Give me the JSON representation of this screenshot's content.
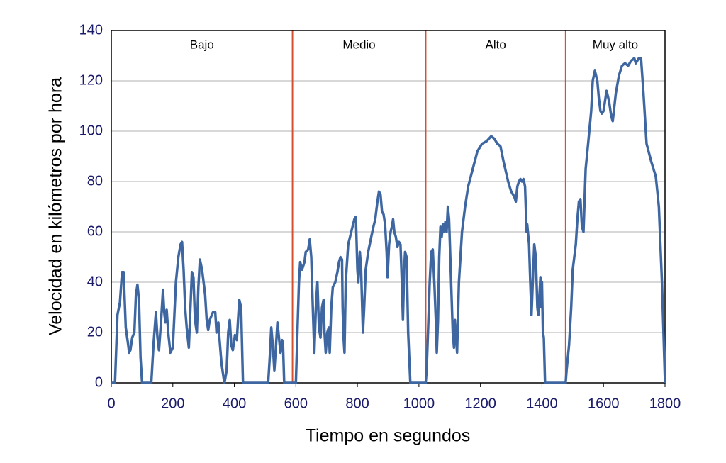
{
  "chart_data": {
    "type": "line",
    "xlabel": "Tiempo en segundos",
    "ylabel": "Velocidad en kilómetros por hora",
    "xlim": [
      0,
      1800
    ],
    "ylim": [
      0,
      140
    ],
    "xticks": [
      0,
      200,
      400,
      600,
      800,
      1000,
      1200,
      1400,
      1600,
      1800
    ],
    "yticks": [
      0,
      20,
      40,
      60,
      80,
      100,
      120,
      140
    ],
    "grid": true,
    "color": "#3e67a1",
    "phase_color": "#d4502e",
    "phases": [
      {
        "name": "Bajo",
        "start": 0,
        "end": 589
      },
      {
        "name": "Medio",
        "start": 589,
        "end": 1022
      },
      {
        "name": "Alto",
        "start": 1022,
        "end": 1477
      },
      {
        "name": "Muy alto",
        "start": 1477,
        "end": 1800
      }
    ],
    "x": [
      0,
      12,
      20,
      28,
      35,
      40,
      47,
      55,
      58,
      62,
      68,
      75,
      80,
      85,
      90,
      95,
      100,
      130,
      137,
      145,
      150,
      155,
      162,
      168,
      172,
      176,
      180,
      185,
      192,
      200,
      210,
      218,
      225,
      230,
      235,
      240,
      245,
      252,
      258,
      262,
      267,
      272,
      278,
      283,
      288,
      295,
      300,
      305,
      310,
      315,
      320,
      330,
      338,
      342,
      348,
      352,
      358,
      365,
      368,
      375,
      380,
      385,
      390,
      395,
      402,
      408,
      412,
      416,
      422,
      428,
      510,
      515,
      520,
      525,
      530,
      535,
      540,
      545,
      550,
      555,
      558,
      562,
      589,
      600,
      605,
      610,
      614,
      620,
      628,
      632,
      640,
      645,
      650,
      655,
      660,
      665,
      670,
      675,
      680,
      685,
      690,
      693,
      697,
      702,
      707,
      710,
      715,
      720,
      728,
      735,
      740,
      745,
      750,
      752,
      755,
      758,
      762,
      770,
      780,
      790,
      795,
      800,
      803,
      808,
      812,
      818,
      822,
      827,
      835,
      845,
      852,
      858,
      865,
      870,
      875,
      880,
      885,
      890,
      895,
      898,
      903,
      908,
      912,
      916,
      920,
      925,
      930,
      935,
      940,
      944,
      948,
      952,
      955,
      960,
      965,
      972,
      1022,
      1025,
      1030,
      1035,
      1040,
      1045,
      1050,
      1055,
      1058,
      1062,
      1066,
      1070,
      1074,
      1078,
      1082,
      1086,
      1090,
      1094,
      1098,
      1102,
      1106,
      1110,
      1114,
      1117,
      1120,
      1124,
      1130,
      1140,
      1150,
      1160,
      1175,
      1190,
      1205,
      1220,
      1235,
      1245,
      1255,
      1265,
      1275,
      1290,
      1300,
      1310,
      1315,
      1320,
      1325,
      1330,
      1335,
      1340,
      1345,
      1350,
      1352,
      1358,
      1362,
      1366,
      1370,
      1375,
      1380,
      1385,
      1388,
      1392,
      1395,
      1398,
      1400,
      1403,
      1406,
      1410,
      1477,
      1480,
      1488,
      1495,
      1500,
      1510,
      1515,
      1520,
      1525,
      1530,
      1535,
      1542,
      1550,
      1560,
      1565,
      1572,
      1580,
      1585,
      1590,
      1595,
      1600,
      1605,
      1610,
      1618,
      1625,
      1630,
      1640,
      1650,
      1660,
      1670,
      1680,
      1690,
      1700,
      1705,
      1710,
      1715,
      1722,
      1730,
      1740,
      1755,
      1770,
      1780,
      1790,
      1800
    ],
    "values": [
      0,
      0,
      27,
      32,
      44,
      44,
      22,
      15,
      12,
      13,
      18,
      20,
      35,
      39,
      33,
      10,
      0,
      0,
      15,
      28,
      18,
      13,
      25,
      37,
      28,
      24,
      29,
      20,
      12,
      14,
      40,
      50,
      55,
      56,
      45,
      30,
      22,
      14,
      32,
      44,
      42,
      25,
      20,
      38,
      49,
      45,
      40,
      35,
      25,
      21,
      25,
      28,
      28,
      20,
      24,
      17,
      8,
      2,
      0,
      5,
      20,
      25,
      15,
      13,
      19,
      17,
      25,
      33,
      30,
      0,
      0,
      10,
      22,
      15,
      5,
      14,
      24,
      18,
      12,
      17,
      16,
      0,
      0,
      0,
      20,
      40,
      48,
      45,
      48,
      52,
      53,
      57,
      50,
      30,
      12,
      30,
      40,
      22,
      18,
      30,
      33,
      20,
      12,
      20,
      22,
      12,
      30,
      38,
      40,
      44,
      48,
      50,
      49,
      30,
      18,
      12,
      40,
      55,
      60,
      65,
      66,
      45,
      40,
      52,
      45,
      20,
      30,
      45,
      52,
      58,
      62,
      65,
      72,
      76,
      75,
      68,
      67,
      63,
      52,
      42,
      55,
      60,
      62,
      65,
      60,
      58,
      54,
      56,
      55,
      42,
      25,
      45,
      52,
      50,
      20,
      0,
      0,
      5,
      22,
      40,
      52,
      53,
      40,
      25,
      12,
      25,
      50,
      62,
      58,
      63,
      60,
      64,
      60,
      70,
      65,
      50,
      35,
      20,
      14,
      25,
      20,
      12,
      40,
      60,
      70,
      78,
      85,
      92,
      95,
      96,
      98,
      97,
      95,
      94,
      88,
      80,
      76,
      74,
      72,
      78,
      80,
      81,
      80,
      81,
      78,
      60,
      63,
      55,
      40,
      27,
      40,
      55,
      50,
      30,
      27,
      35,
      42,
      30,
      40,
      20,
      18,
      0,
      0,
      5,
      15,
      30,
      45,
      55,
      65,
      72,
      73,
      62,
      60,
      85,
      95,
      108,
      120,
      124,
      120,
      113,
      108,
      107,
      108,
      112,
      116,
      112,
      106,
      104,
      115,
      122,
      126,
      127,
      126,
      128,
      129,
      127,
      128,
      129,
      129,
      115,
      95,
      88,
      82,
      70,
      40,
      0
    ]
  }
}
